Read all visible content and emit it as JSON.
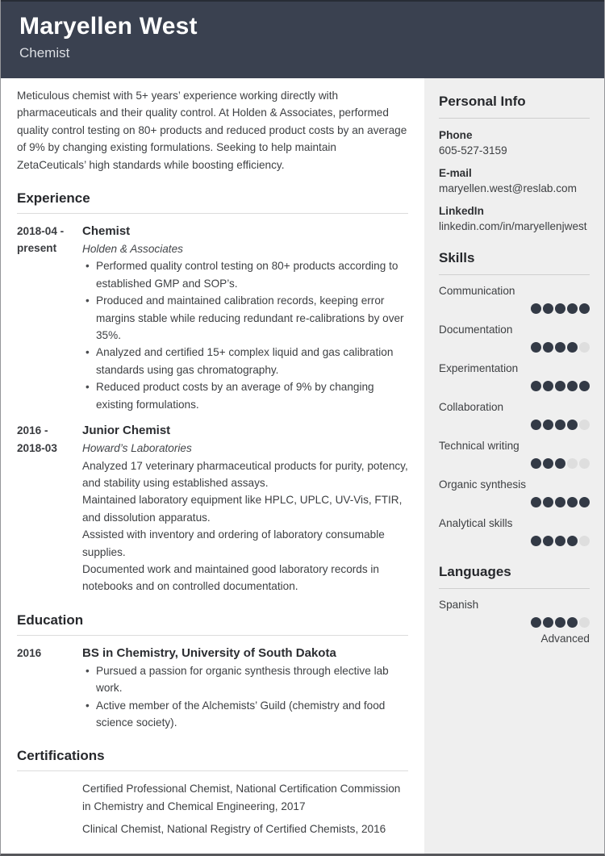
{
  "header": {
    "name": "Maryellen West",
    "title": "Chemist"
  },
  "summary": "Meticulous chemist with 5+ years’ experience working directly with pharmaceuticals and their quality control. At Holden & Associates, performed quality control testing on 80+ products and reduced product costs by an average of 9% by changing existing formulations. Seeking to help maintain ZetaCeuticals’ high standards while boosting efficiency.",
  "experience": {
    "heading": "Experience",
    "entries": [
      {
        "date_lines": [
          "2018-04 -",
          "present"
        ],
        "title": "Chemist",
        "company": "Holden & Associates",
        "items_style": "bullets",
        "items": [
          "Performed quality control testing on 80+ products according to established GMP and SOP’s.",
          "Produced and maintained calibration records, keeping error margins stable while reducing redundant re-calibrations by over 35%.",
          "Analyzed and certified 15+ complex liquid and gas calibration standards using gas chromatography.",
          "Reduced product costs by an average of 9% by changing existing formulations."
        ]
      },
      {
        "date_lines": [
          "2016 -",
          "2018-03"
        ],
        "title": "Junior Chemist",
        "company": "Howard’s Laboratories",
        "items_style": "plain",
        "items": [
          "Analyzed 17 veterinary pharmaceutical products for purity, potency, and stability using established assays.",
          "Maintained laboratory equipment like HPLC, UPLC, UV-Vis, FTIR, and dissolution apparatus.",
          "Assisted with inventory and ordering of laboratory consumable supplies.",
          "Documented work and maintained good laboratory records in notebooks and on controlled documentation."
        ]
      }
    ]
  },
  "education": {
    "heading": "Education",
    "entries": [
      {
        "date_lines": [
          "2016"
        ],
        "title": "BS in Chemistry, University of South Dakota",
        "items_style": "bullets",
        "items": [
          "Pursued a passion for organic synthesis through elective lab work.",
          "Active member of the Alchemists’ Guild (chemistry and food science society)."
        ]
      }
    ]
  },
  "certifications": {
    "heading": "Certifications",
    "items": [
      "Certified Professional Chemist, National Certification Commission in Chemistry and Chemical Engineering, 2017",
      "Clinical Chemist, National Registry of Certified Chemists, 2016"
    ]
  },
  "sidebar": {
    "personal_info": {
      "heading": "Personal Info",
      "items": [
        {
          "label": "Phone",
          "value": "605-527-3159"
        },
        {
          "label": "E-mail",
          "value": "maryellen.west@reslab.com"
        },
        {
          "label": "LinkedIn",
          "value": "linkedin.com/in/maryellenjwest"
        }
      ]
    },
    "skills": {
      "heading": "Skills",
      "max_level": 5,
      "items": [
        {
          "label": "Communication",
          "level": 5
        },
        {
          "label": "Documentation",
          "level": 4
        },
        {
          "label": "Experimentation",
          "level": 5
        },
        {
          "label": "Collaboration",
          "level": 4
        },
        {
          "label": "Technical writing",
          "level": 3
        },
        {
          "label": "Organic synthesis",
          "level": 5
        },
        {
          "label": "Analytical skills",
          "level": 4
        }
      ]
    },
    "languages": {
      "heading": "Languages",
      "max_level": 5,
      "items": [
        {
          "label": "Spanish",
          "level": 4,
          "proficiency": "Advanced"
        }
      ]
    }
  },
  "colors": {
    "header_bg": "#3a4150",
    "sidebar_bg": "#efefef",
    "dot_filled": "#333a46",
    "dot_empty": "#dedede",
    "heading_text": "#26282c"
  }
}
